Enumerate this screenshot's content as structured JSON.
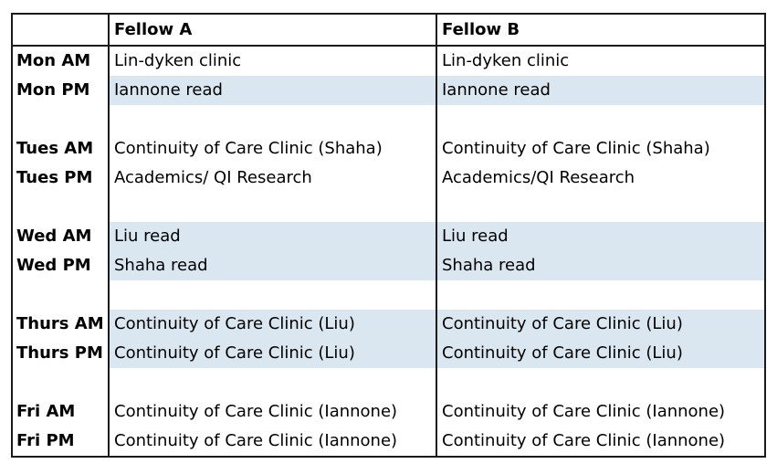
{
  "headers": {
    "day": "",
    "fellow_a": "Fellow A",
    "fellow_b": "Fellow B"
  },
  "colors": {
    "shade": "#dae6f0",
    "border": "#1a1a1a"
  },
  "rows": [
    {
      "day": "Mon AM",
      "a": "Lin-dyken clinic",
      "b": "Lin-dyken clinic",
      "shaded": false
    },
    {
      "day": "Mon PM",
      "a": "Iannone read",
      "b": "Iannone read",
      "shaded": true
    },
    {
      "day": "",
      "a": "",
      "b": "",
      "shaded": false
    },
    {
      "day": "Tues AM",
      "a": "Continuity of Care Clinic (Shaha)",
      "b": "Continuity of Care Clinic (Shaha)",
      "shaded": false
    },
    {
      "day": "Tues PM",
      "a": "Academics/ QI Research",
      "b": "Academics/QI Research",
      "shaded": false
    },
    {
      "day": "",
      "a": "",
      "b": "",
      "shaded": false
    },
    {
      "day": "Wed AM",
      "a": "Liu read",
      "b": "Liu read",
      "shaded": true
    },
    {
      "day": "Wed PM",
      "a": "Shaha read",
      "b": "Shaha read",
      "shaded": true
    },
    {
      "day": "",
      "a": "",
      "b": "",
      "shaded": false
    },
    {
      "day": "Thurs AM",
      "a": "Continuity of Care Clinic (Liu)",
      "b": "Continuity of Care Clinic (Liu)",
      "shaded": true
    },
    {
      "day": "Thurs PM",
      "a": "Continuity of Care Clinic (Liu)",
      "b": "Continuity of Care Clinic (Liu)",
      "shaded": true
    },
    {
      "day": "",
      "a": "",
      "b": "",
      "shaded": false
    },
    {
      "day": "Fri AM",
      "a": "Continuity of Care Clinic (Iannone)",
      "b": "Continuity of Care Clinic (Iannone)",
      "shaded": false
    },
    {
      "day": "Fri PM",
      "a": "Continuity of Care Clinic (Iannone)",
      "b": "Continuity of Care Clinic (Iannone)",
      "shaded": false
    }
  ]
}
